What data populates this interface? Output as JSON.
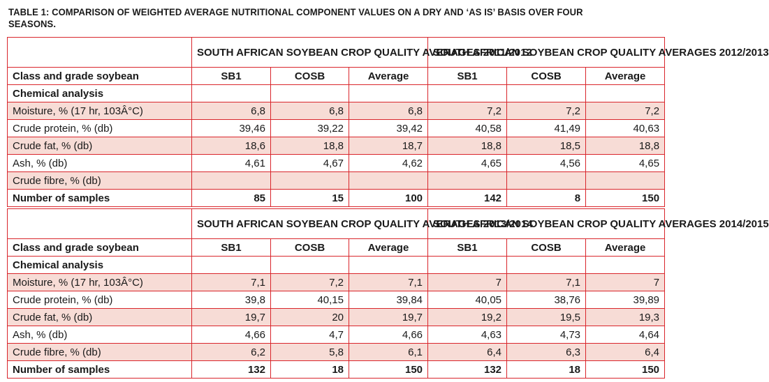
{
  "title": "TABLE 1: COMPARISON OF WEIGHTED AVERAGE NUTRITIONAL COMPONENT VALUES ON A DRY AND ‘AS IS’ BASIS OVER FOUR SEASONS.",
  "tables": [
    {
      "seasons": [
        "SOUTH AFRICAN SOYBEAN CROP QUALITY AVERAGES 2011/2012",
        "SOUTH AFRICAN SOYBEAN CROP QUALITY AVERAGES 2012/2013"
      ],
      "header": {
        "label": "Class and grade soybean",
        "cols": [
          "SB1",
          "COSB",
          "Average",
          "SB1",
          "COSB",
          "Average"
        ]
      },
      "rows": [
        {
          "label": "Chemical analysis",
          "values": [
            "",
            "",
            "",
            "",
            "",
            ""
          ]
        },
        {
          "label": "Moisture, % (17 hr, 103Â°C)",
          "values": [
            "6,8",
            "6,8",
            "6,8",
            "7,2",
            "7,2",
            "7,2"
          ]
        },
        {
          "label": "Crude protein, % (db)",
          "values": [
            "39,46",
            "39,22",
            "39,42",
            "40,58",
            "41,49",
            "40,63"
          ]
        },
        {
          "label": "Crude fat, % (db)",
          "values": [
            "18,6",
            "18,8",
            "18,7",
            "18,8",
            "18,5",
            "18,8"
          ]
        },
        {
          "label": "Ash, % (db)",
          "values": [
            "4,61",
            "4,67",
            "4,62",
            "4,65",
            "4,56",
            "4,65"
          ]
        },
        {
          "label": "Crude fibre, % (db)",
          "values": [
            "",
            "",
            "",
            "",
            "",
            ""
          ]
        },
        {
          "label": "Number of samples",
          "values": [
            "85",
            "15",
            "100",
            "142",
            "8",
            "150"
          ]
        }
      ]
    },
    {
      "seasons": [
        "SOUTH AFRICAN SOYBEAN CROP QUALITY AVERAGES 2013/2014",
        "SOUTH AFRICAN SOYBEAN CROP QUALITY AVERAGES 2014/2015"
      ],
      "header": {
        "label": "Class and grade soybean",
        "cols": [
          "SB1",
          "COSB",
          "Average",
          "SB1",
          "COSB",
          "Average"
        ]
      },
      "rows": [
        {
          "label": "Chemical analysis",
          "values": [
            "",
            "",
            "",
            "",
            "",
            ""
          ]
        },
        {
          "label": "Moisture, % (17 hr, 103Â°C)",
          "values": [
            "7,1",
            "7,2",
            "7,1",
            "7",
            "7,1",
            "7"
          ]
        },
        {
          "label": "Crude protein, % (db)",
          "values": [
            "39,8",
            "40,15",
            "39,84",
            "40,05",
            "38,76",
            "39,89"
          ]
        },
        {
          "label": "Crude fat, % (db)",
          "values": [
            "19,7",
            "20",
            "19,7",
            "19,2",
            "19,5",
            "19,3"
          ]
        },
        {
          "label": "Ash, % (db)",
          "values": [
            "4,66",
            "4,7",
            "4,66",
            "4,63",
            "4,73",
            "4,64"
          ]
        },
        {
          "label": "Crude fibre, % (db)",
          "values": [
            "6,2",
            "5,8",
            "6,1",
            "6,4",
            "6,3",
            "6,4"
          ]
        },
        {
          "label": "Number of samples",
          "values": [
            "132",
            "18",
            "150",
            "132",
            "18",
            "150"
          ]
        }
      ]
    }
  ],
  "colors": {
    "border": "#d9252b",
    "shade": "#f7dcd6"
  }
}
